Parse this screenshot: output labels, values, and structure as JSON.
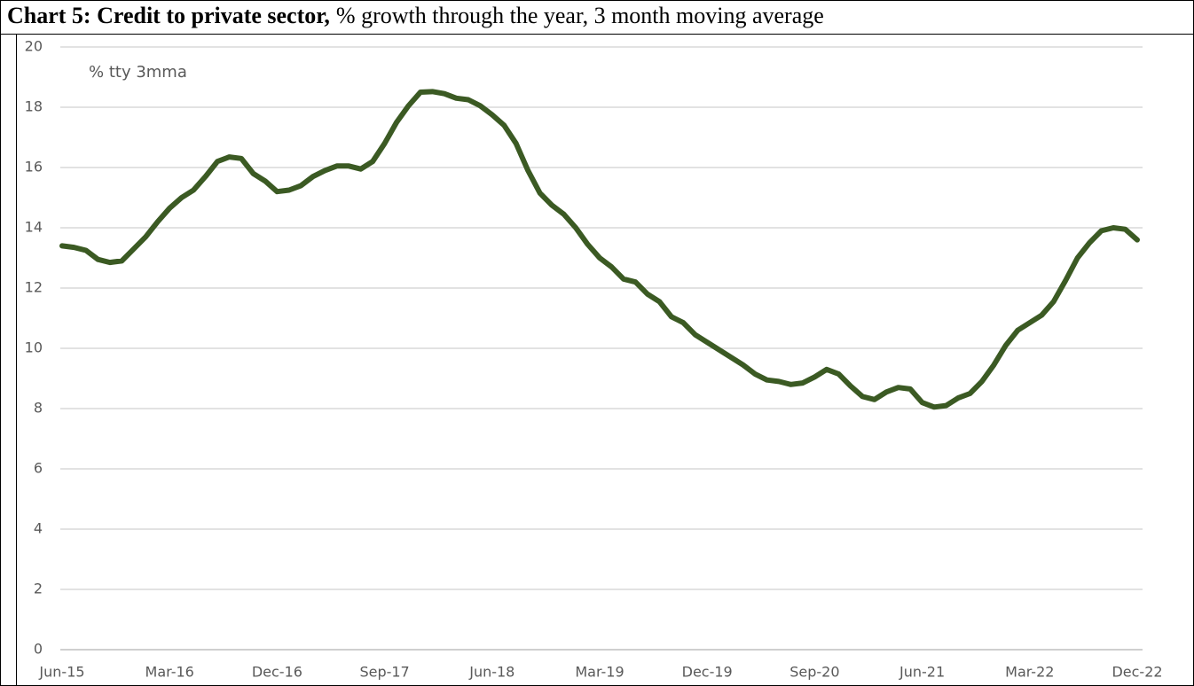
{
  "chart_data": {
    "type": "line",
    "title": "Chart 5: Credit to private sector,",
    "subtitle": "% growth through the year, 3 month moving average",
    "annotation": "% tty 3mma",
    "categories": [
      "Jun-15",
      null,
      null,
      null,
      null,
      null,
      null,
      null,
      null,
      "Mar-16",
      null,
      null,
      null,
      null,
      null,
      null,
      null,
      null,
      "Dec-16",
      null,
      null,
      null,
      null,
      null,
      null,
      null,
      null,
      "Sep-17",
      null,
      null,
      null,
      null,
      null,
      null,
      null,
      null,
      "Jun-18",
      null,
      null,
      null,
      null,
      null,
      null,
      null,
      null,
      "Mar-19",
      null,
      null,
      null,
      null,
      null,
      null,
      null,
      null,
      "Dec-19",
      null,
      null,
      null,
      null,
      null,
      null,
      null,
      null,
      "Sep-20",
      null,
      null,
      null,
      null,
      null,
      null,
      null,
      null,
      "Jun-21",
      null,
      null,
      null,
      null,
      null,
      null,
      null,
      null,
      "Mar-22",
      null,
      null,
      null,
      null,
      null,
      null,
      null,
      null,
      "Dec-22"
    ],
    "series": [
      {
        "name": "Credit to private sector",
        "color": "#3b5a23",
        "values": [
          13.4,
          13.35,
          13.25,
          12.95,
          12.85,
          12.9,
          13.3,
          13.7,
          14.2,
          14.65,
          15.0,
          15.25,
          15.7,
          16.2,
          16.35,
          16.3,
          15.8,
          15.55,
          15.2,
          15.25,
          15.4,
          15.7,
          15.9,
          16.05,
          16.05,
          15.95,
          16.2,
          16.8,
          17.5,
          18.05,
          18.5,
          18.52,
          18.45,
          18.3,
          18.25,
          18.05,
          17.75,
          17.4,
          16.8,
          15.9,
          15.15,
          14.75,
          14.45,
          14.0,
          13.45,
          13.0,
          12.7,
          12.3,
          12.2,
          11.8,
          11.55,
          11.05,
          10.85,
          10.45,
          10.2,
          9.95,
          9.7,
          9.45,
          9.15,
          8.95,
          8.9,
          8.8,
          8.85,
          9.05,
          9.3,
          9.15,
          8.75,
          8.4,
          8.3,
          8.55,
          8.7,
          8.65,
          8.2,
          8.05,
          8.1,
          8.35,
          8.5,
          8.9,
          9.45,
          10.1,
          10.6,
          10.85,
          11.1,
          11.55,
          12.25,
          13.0,
          13.5,
          13.9,
          14.0,
          13.95,
          13.6
        ]
      }
    ],
    "ylim": [
      0,
      20
    ],
    "yticks": [
      0,
      2,
      4,
      6,
      8,
      10,
      12,
      14,
      16,
      18,
      20
    ],
    "grid": true
  }
}
